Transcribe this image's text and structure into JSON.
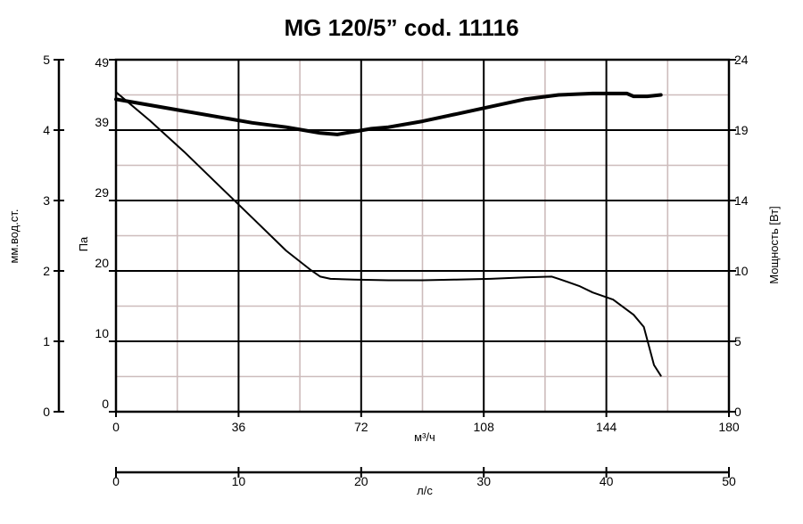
{
  "chart_data": {
    "type": "line",
    "title": "MG 120/5” cod. 11116",
    "x_axis_primary": {
      "label": "м³/ч",
      "range": [
        0,
        180
      ],
      "ticks": [
        "0",
        "36",
        "72",
        "108",
        "144",
        "180"
      ]
    },
    "x_axis_secondary": {
      "label": "л/с",
      "range": [
        0,
        50
      ],
      "ticks": [
        "0",
        "10",
        "20",
        "30",
        "40",
        "50"
      ]
    },
    "y_axis_outer": {
      "label": "мм.вод.ст.",
      "range": [
        0,
        5
      ],
      "ticks": [
        "0",
        "1",
        "2",
        "3",
        "4",
        "5"
      ]
    },
    "y_axis_pressure": {
      "label": "Па",
      "range": [
        0,
        49
      ],
      "ticks": [
        "0",
        "10",
        "20",
        "29",
        "39",
        "49"
      ]
    },
    "y_axis_power": {
      "label": "Мощность [Вт]",
      "range": [
        0,
        24
      ],
      "ticks": [
        "0",
        "5",
        "10",
        "14",
        "19",
        "24"
      ]
    },
    "grid": true,
    "series": [
      {
        "role": "pressure",
        "axis": "pressure",
        "stroke": "thin",
        "x": [
          0,
          10,
          20,
          30,
          40,
          50,
          57,
          60,
          63,
          70,
          80,
          90,
          100,
          110,
          120,
          128,
          130,
          136,
          140,
          146,
          152,
          155,
          158,
          160
        ],
        "y": [
          44.5,
          40.5,
          36.2,
          31.6,
          27.0,
          22.4,
          19.8,
          18.8,
          18.5,
          18.4,
          18.3,
          18.3,
          18.4,
          18.5,
          18.7,
          18.8,
          18.5,
          17.5,
          16.6,
          15.6,
          13.5,
          11.8,
          6.5,
          5.0
        ]
      },
      {
        "role": "power",
        "axis": "power",
        "stroke": "thick",
        "x": [
          0,
          10,
          20,
          30,
          40,
          50,
          55,
          60,
          65,
          70,
          75,
          80,
          90,
          100,
          110,
          120,
          130,
          140,
          150,
          152,
          156,
          160
        ],
        "y": [
          21.3,
          20.9,
          20.5,
          20.1,
          19.7,
          19.4,
          19.2,
          19.0,
          18.9,
          19.1,
          19.3,
          19.4,
          19.8,
          20.3,
          20.8,
          21.3,
          21.6,
          21.7,
          21.7,
          21.5,
          21.5,
          21.6
        ]
      }
    ]
  }
}
